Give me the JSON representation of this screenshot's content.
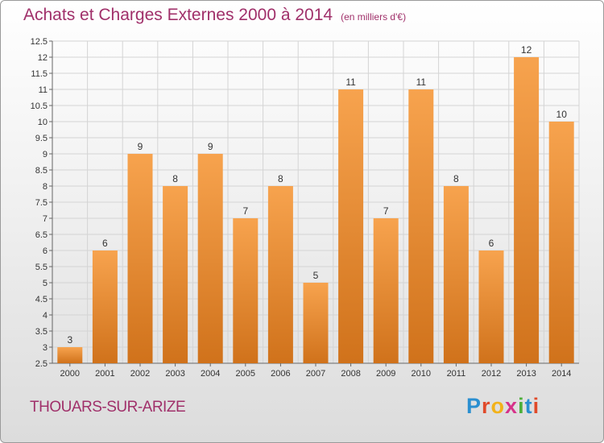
{
  "title": "Achats et Charges Externes 2000 à 2014",
  "subtitle": "(en milliers d'€)",
  "commune": "THOUARS-SUR-ARIZE",
  "logo": {
    "letters": [
      {
        "char": "P",
        "color": "#2a8fd0"
      },
      {
        "char": "r",
        "color": "#e04a2a"
      },
      {
        "char": "o",
        "color": "#f2b21a"
      },
      {
        "char": "x",
        "color": "#d6338a"
      },
      {
        "char": "i",
        "color": "#4caf3a"
      },
      {
        "char": "t",
        "color": "#2a8fd0"
      },
      {
        "char": "i",
        "color": "#e04a2a"
      }
    ]
  },
  "chart_data": {
    "type": "bar",
    "categories": [
      "2000",
      "2001",
      "2002",
      "2003",
      "2004",
      "2005",
      "2006",
      "2007",
      "2008",
      "2009",
      "2010",
      "2011",
      "2012",
      "2013",
      "2014"
    ],
    "values": [
      3,
      6,
      9,
      8,
      9,
      7,
      8,
      5,
      11,
      7,
      11,
      8,
      6,
      12,
      10
    ],
    "yticks": [
      "2.5",
      "3",
      "3.5",
      "4",
      "4.5",
      "5",
      "5.5",
      "6",
      "6.5",
      "7",
      "7.5",
      "8",
      "8.5",
      "9",
      "9.5",
      "10",
      "10.5",
      "11",
      "11.5",
      "12",
      "12.5"
    ],
    "ylim": [
      2.5,
      12.5
    ],
    "grid": true,
    "bar_color_top": "#f7a34e",
    "bar_color_bottom": "#d0721b"
  }
}
